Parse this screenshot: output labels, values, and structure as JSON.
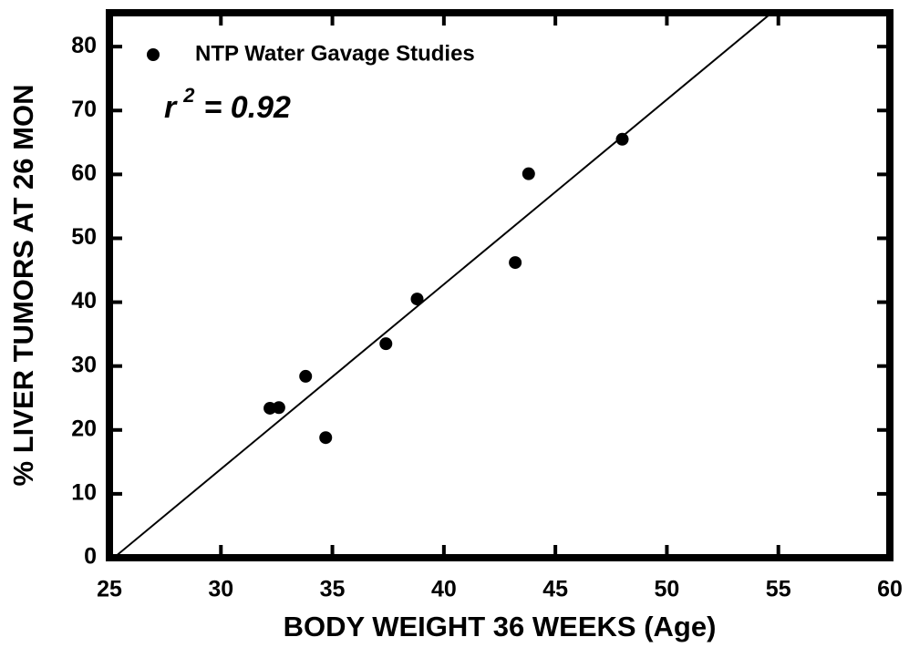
{
  "chart_data": {
    "type": "scatter",
    "xlabel": "BODY WEIGHT 36 WEEKS (Age)",
    "ylabel": "% LIVER TUMORS AT 26 MON",
    "series": [
      {
        "name": "NTP Water Gavage Studies",
        "color": "#000000",
        "x": [
          32.2,
          32.6,
          33.8,
          34.7,
          37.4,
          38.8,
          43.2,
          43.8,
          48.0
        ],
        "values": [
          23.4,
          23.5,
          28.4,
          18.8,
          33.5,
          40.5,
          46.2,
          60.1,
          65.5
        ]
      }
    ],
    "fit_line": {
      "x": [
        25.2,
        54.7
      ],
      "values": [
        0,
        85.3
      ]
    },
    "annotation": {
      "base": "r",
      "superscript": "2",
      "rest": "= 0.92"
    },
    "xlim": [
      25,
      60
    ],
    "xticks": [
      25,
      30,
      35,
      40,
      45,
      50,
      55,
      60
    ],
    "ylim": [
      0,
      85.3
    ],
    "yticks": [
      0,
      10,
      20,
      30,
      40,
      50,
      60,
      70,
      80
    ],
    "legend": "upper left"
  }
}
